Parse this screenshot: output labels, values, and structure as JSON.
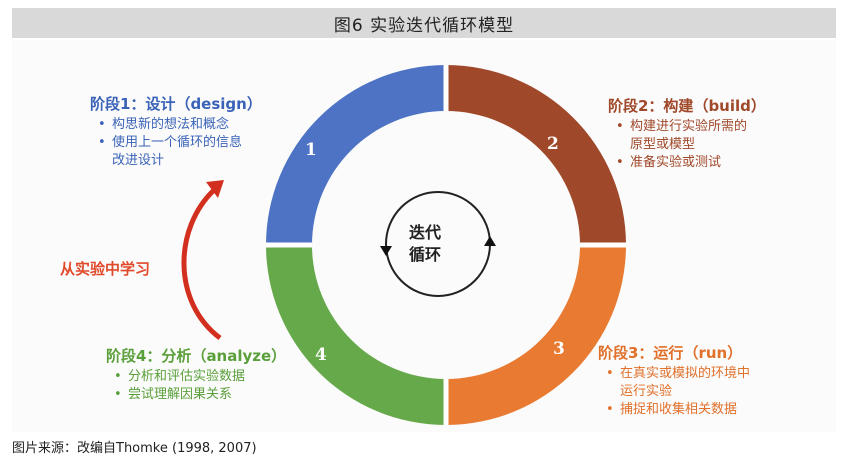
{
  "title": "图6  实验迭代循环模型",
  "segments": [
    {
      "num": "1",
      "color": "#4e73c4"
    },
    {
      "num": "2",
      "color": "#a0482a"
    },
    {
      "num": "3",
      "color": "#e87a32"
    },
    {
      "num": "4",
      "color": "#66a94a"
    }
  ],
  "phases": [
    {
      "title": "阶段1：设计（design）",
      "bullets": [
        "构思新的想法和概念",
        "使用上一个循环的信息",
        "改进设计"
      ]
    },
    {
      "title": "阶段2：构建（build）",
      "bullets": [
        "构建进行实验所需的",
        "原型或模型",
        "准备实验或测试"
      ]
    },
    {
      "title": "阶段3：运行（run）",
      "bullets": [
        "在真实或模拟的环境中",
        "运行实验",
        "捕捉和收集相关数据"
      ]
    },
    {
      "title": "阶段4：分析（analyze）",
      "bullets": [
        "分析和评估实验数据",
        "尝试理解因果关系"
      ]
    }
  ],
  "learn_label": "从实验中学习",
  "center": {
    "line1": "迭代",
    "line2": "循环"
  },
  "source": "图片来源：改编自Thomke (1998, 2007)"
}
